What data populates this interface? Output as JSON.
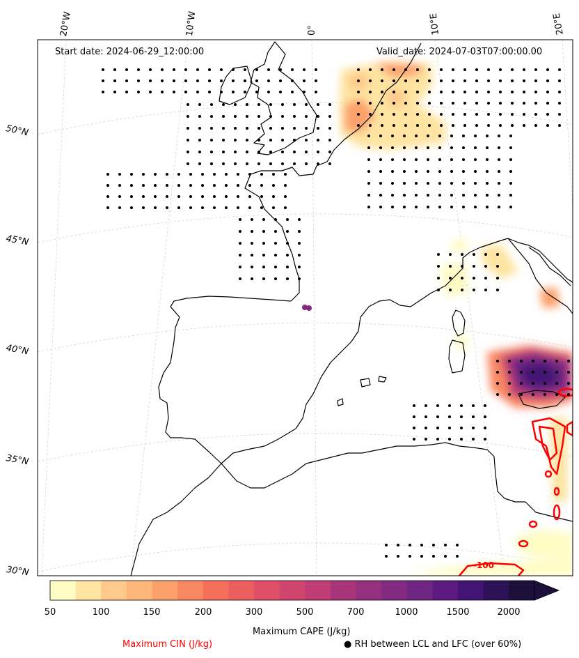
{
  "header": {
    "start_date": "Start date: 2024-06-29_12:00:00",
    "valid_date": "Valid_date: 2024-07-03T07:00:00.00"
  },
  "axes": {
    "lon_labels": [
      "20°W",
      "10°W",
      "0°",
      "10°E",
      "20°E"
    ],
    "lat_labels": [
      "50°N",
      "45°N",
      "40°N",
      "35°N",
      "30°N"
    ]
  },
  "colorbar": {
    "title": "Maximum CAPE (J/kg)",
    "ticks": [
      "50",
      "100",
      "150",
      "200",
      "300",
      "500",
      "700",
      "1000",
      "1500",
      "2000"
    ],
    "colors": [
      "#fffcc4",
      "#fee4a0",
      "#fec98a",
      "#feb67a",
      "#fca06c",
      "#f98762",
      "#f5705a",
      "#ec5f5f",
      "#e04f67",
      "#d0456e",
      "#bf3c74",
      "#a8357a",
      "#94307e",
      "#832b81",
      "#6f2582",
      "#5a1a80",
      "#421473",
      "#2c1157",
      "#1c0f3c"
    ],
    "extend_color": "#1c0f3c"
  },
  "legend": {
    "cin_label": "Maximum CIN (J/kg)",
    "cin_color": "#ff0000",
    "rh_label": "● RH between LCL and LFC (over 60%)"
  },
  "contour_label": "-100"
}
